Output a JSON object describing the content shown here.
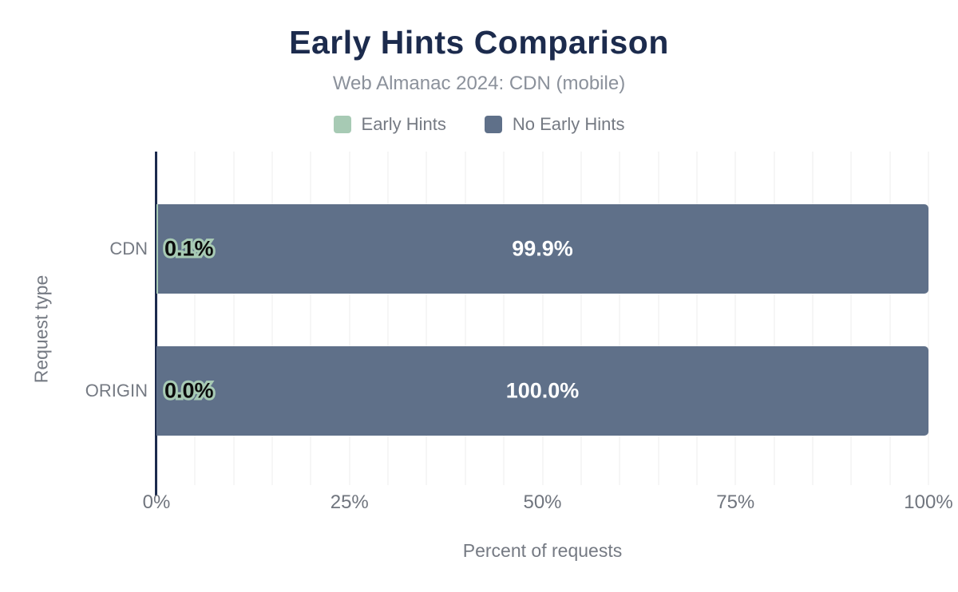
{
  "header": {
    "title": "Early Hints Comparison",
    "subtitle": "Web Almanac 2024: CDN (mobile)"
  },
  "legend": [
    {
      "label": "Early Hints",
      "color": "#a7cab4"
    },
    {
      "label": "No Early Hints",
      "color": "#5f7089"
    }
  ],
  "axes": {
    "x_label": "Percent of requests",
    "y_label": "Request type",
    "x_ticks": [
      "0%",
      "25%",
      "50%",
      "75%",
      "100%"
    ]
  },
  "colors": {
    "title": "#1c2b4d",
    "axis_line": "#1c2b4d",
    "gridline": "#ececec",
    "data_label_fill": "#0c0c0c",
    "data_label_halo": "#a7cab4",
    "data_label_on_bar": "#ffffff"
  },
  "chart_data": {
    "type": "bar",
    "orientation": "horizontal",
    "stacked": true,
    "title": "Early Hints Comparison",
    "subtitle": "Web Almanac 2024: CDN (mobile)",
    "categories": [
      "CDN",
      "ORIGIN"
    ],
    "series": [
      {
        "name": "Early Hints",
        "color": "#a7cab4",
        "values": [
          0.1,
          0.0
        ]
      },
      {
        "name": "No Early Hints",
        "color": "#5f7089",
        "values": [
          99.9,
          100.0
        ]
      }
    ],
    "data_labels": {
      "early_hints": [
        "0.1%",
        "0.0%"
      ],
      "no_early_hints": [
        "99.9%",
        "100.0%"
      ]
    },
    "xlabel": "Percent of requests",
    "ylabel": "Request type",
    "xlim": [
      0,
      100
    ],
    "x_tick_interval": 25,
    "minor_grid_interval": 5,
    "grid": true,
    "legend_position": "top"
  }
}
